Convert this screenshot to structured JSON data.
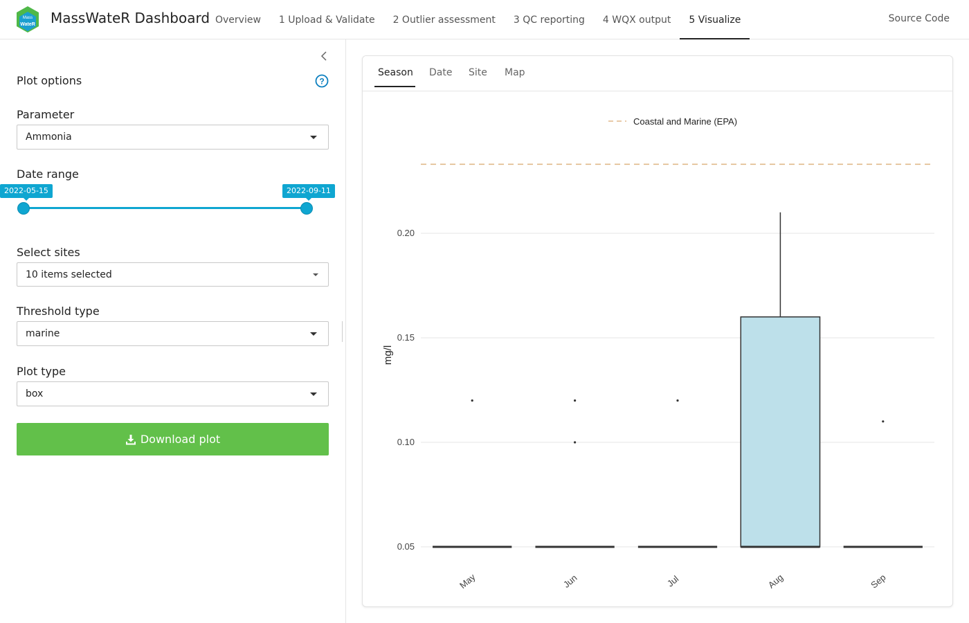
{
  "app": {
    "title": "MassWateR Dashboard",
    "logo_text_top": "Mass",
    "logo_text_bottom": "WateR"
  },
  "nav": {
    "items": [
      {
        "label": "Overview"
      },
      {
        "label": "1 Upload & Validate"
      },
      {
        "label": "2 Outlier assessment"
      },
      {
        "label": "3 QC reporting"
      },
      {
        "label": "4 WQX output"
      },
      {
        "label": "5 Visualize"
      }
    ],
    "active_index": 5,
    "source_code": "Source Code"
  },
  "sidebar": {
    "title": "Plot options",
    "parameter": {
      "label": "Parameter",
      "value": "Ammonia"
    },
    "date_range": {
      "label": "Date range",
      "start": "2022-05-15",
      "end": "2022-09-11"
    },
    "sites": {
      "label": "Select sites",
      "value": "10 items selected"
    },
    "threshold": {
      "label": "Threshold type",
      "value": "marine"
    },
    "plot_type": {
      "label": "Plot type",
      "value": "box"
    },
    "download_label": "Download plot"
  },
  "tabs": [
    {
      "label": "Season"
    },
    {
      "label": "Date"
    },
    {
      "label": "Site"
    },
    {
      "label": "Map"
    }
  ],
  "colors": {
    "accent": "#0fa6d1",
    "download": "#62c04a",
    "box_fill": "#bde0ea",
    "threshold_line": "#e0b98a"
  },
  "chart_data": {
    "type": "box",
    "legend": {
      "label": "Coastal and Marine (EPA)",
      "placement": "top"
    },
    "ylabel": "mg/l",
    "ylim": [
      0.035,
      0.25
    ],
    "yticks": [
      0.05,
      0.1,
      0.15,
      0.2
    ],
    "ytick_labels": [
      "0.05",
      "0.10",
      "0.15",
      "0.20"
    ],
    "threshold": 0.233,
    "categories": [
      "May",
      "Jun",
      "Jul",
      "Aug",
      "Sep"
    ],
    "boxes": [
      {
        "category": "May",
        "q1": 0.05,
        "median": 0.05,
        "q3": 0.05,
        "whisker_low": 0.05,
        "whisker_high": 0.05,
        "outliers": [
          0.12
        ]
      },
      {
        "category": "Jun",
        "q1": 0.05,
        "median": 0.05,
        "q3": 0.05,
        "whisker_low": 0.05,
        "whisker_high": 0.05,
        "outliers": [
          0.12,
          0.1
        ]
      },
      {
        "category": "Jul",
        "q1": 0.05,
        "median": 0.05,
        "q3": 0.05,
        "whisker_low": 0.05,
        "whisker_high": 0.05,
        "outliers": [
          0.12
        ]
      },
      {
        "category": "Aug",
        "q1": 0.05,
        "median": 0.05,
        "q3": 0.16,
        "whisker_low": 0.05,
        "whisker_high": 0.21,
        "outliers": []
      },
      {
        "category": "Sep",
        "q1": 0.05,
        "median": 0.05,
        "q3": 0.05,
        "whisker_low": 0.05,
        "whisker_high": 0.05,
        "outliers": [
          0.11
        ]
      }
    ],
    "grid": true
  }
}
